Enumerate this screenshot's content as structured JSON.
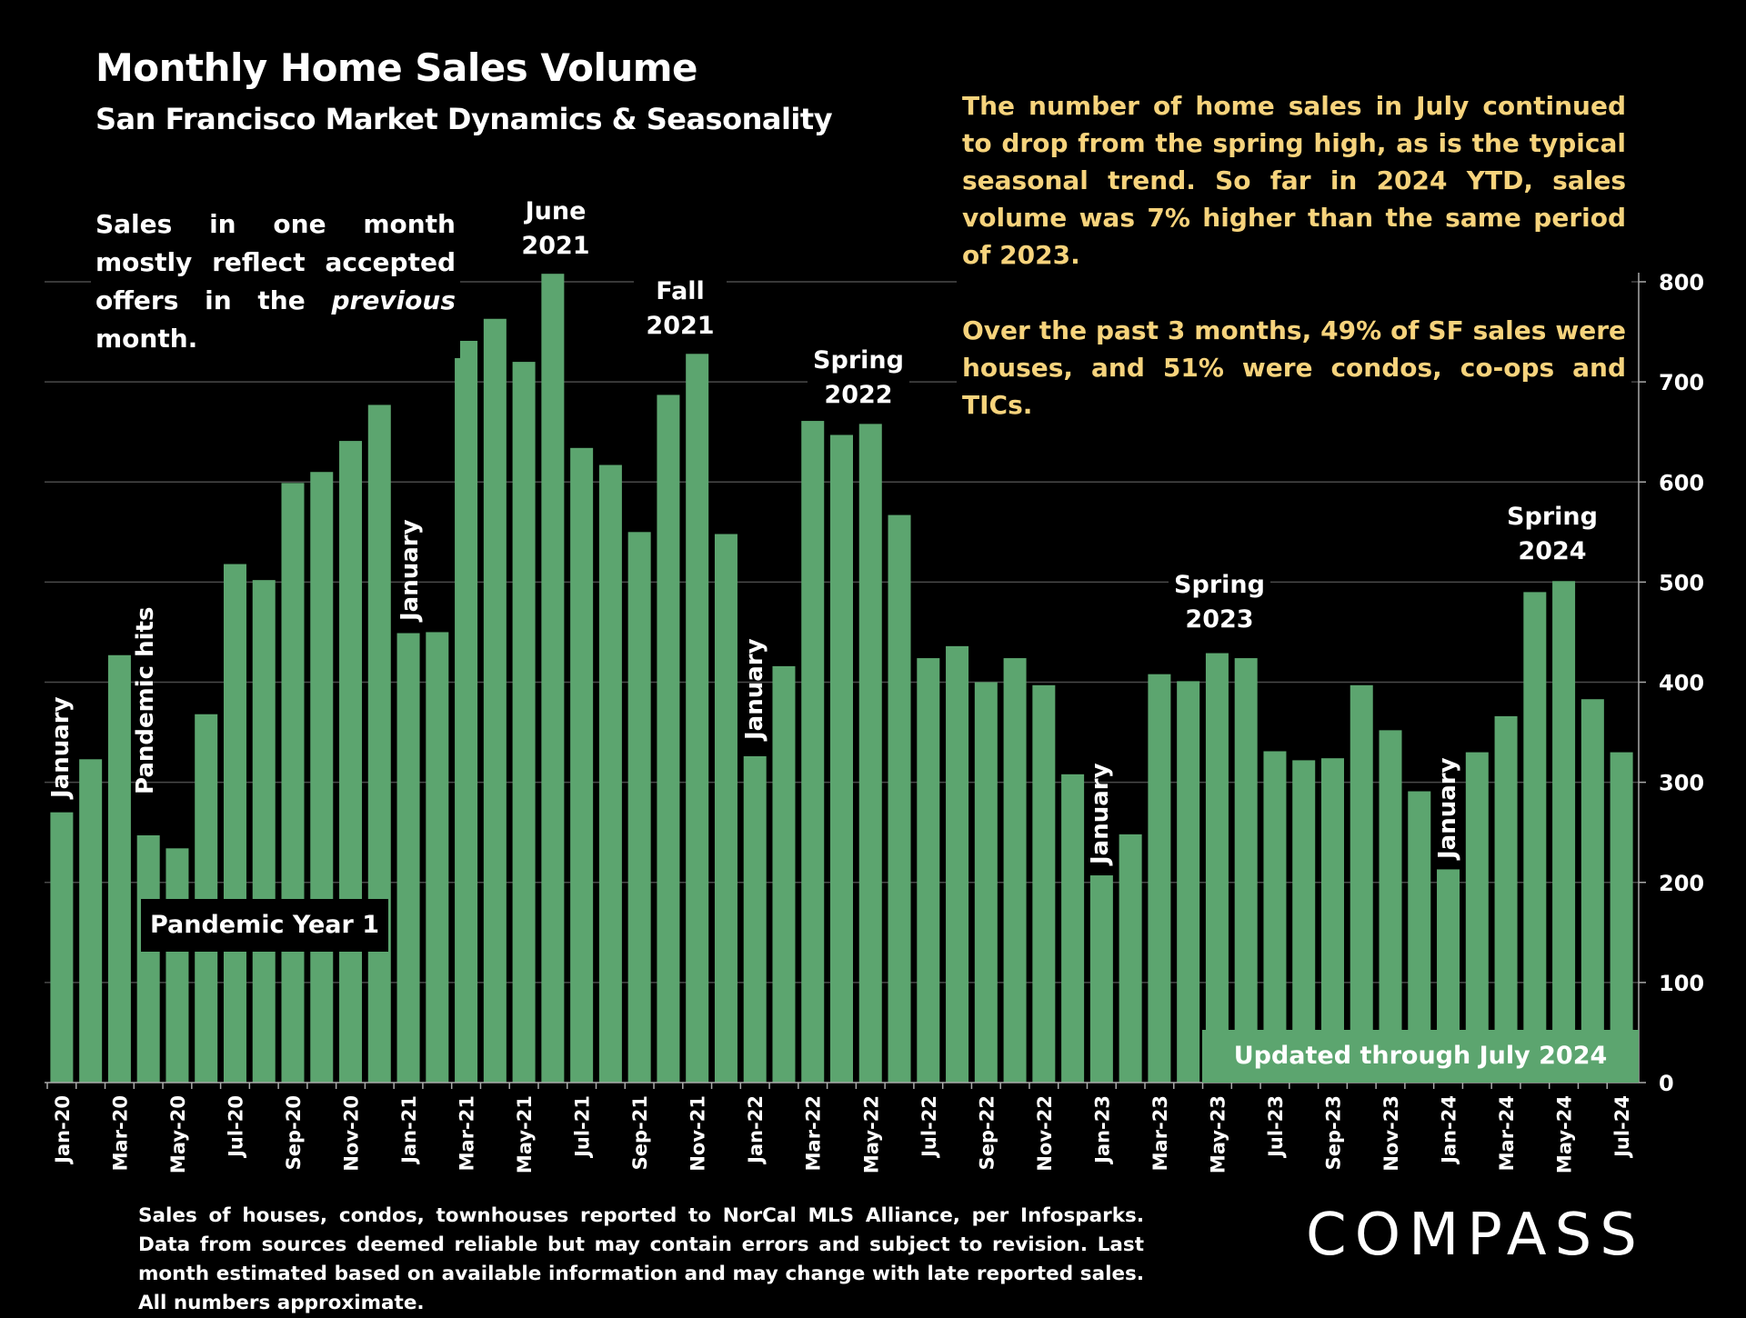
{
  "header": {
    "title": "Monthly Home Sales Volume",
    "subtitle": "San Francisco Market Dynamics & Seasonality"
  },
  "commentary": [
    "The number of home sales in July continued to drop from the spring high, as is the typical seasonal trend. So far in 2024 YTD, sales volume was 7% higher than the same period of 2023.",
    "Over the past 3 months, 49% of SF sales were houses, and 51% were condos, co-ops and TICs."
  ],
  "note": {
    "before": "Sales in one month mostly reflect accepted offers in the ",
    "italic": "previous",
    "after": " month."
  },
  "annotations": {
    "june_2021": "June 2021",
    "fall_2021": "Fall 2021",
    "spring_2022": "Spring 2022",
    "spring_2023": "Spring 2023",
    "spring_2024": "Spring 2024",
    "january": "January",
    "pandemic_hits": "Pandemic hits",
    "pandemic_year_1": "Pandemic Year 1",
    "updated": "Updated through July 2024"
  },
  "footnote": "Sales of houses, condos, townhouses reported to NorCal MLS Alliance, per Infosparks. Data from sources deemed reliable but may contain errors and subject to revision. Last month estimated based on available information and may change with late reported sales. All numbers approximate.",
  "logo": "COMPASS",
  "colors": {
    "bar": "#5CA56F",
    "commentary": "#F6D37C",
    "background": "#000000",
    "grid": "#4a4a4a"
  },
  "chart_data": {
    "type": "bar",
    "title": "Monthly Home Sales Volume",
    "categories": [
      "Jan-20",
      "Feb-20",
      "Mar-20",
      "Apr-20",
      "May-20",
      "Jun-20",
      "Jul-20",
      "Aug-20",
      "Sep-20",
      "Oct-20",
      "Nov-20",
      "Dec-20",
      "Jan-21",
      "Feb-21",
      "Mar-21",
      "Apr-21",
      "May-21",
      "Jun-21",
      "Jul-21",
      "Aug-21",
      "Sep-21",
      "Oct-21",
      "Nov-21",
      "Dec-21",
      "Jan-22",
      "Feb-22",
      "Mar-22",
      "Apr-22",
      "May-22",
      "Jun-22",
      "Jul-22",
      "Aug-22",
      "Sep-22",
      "Oct-22",
      "Nov-22",
      "Dec-22",
      "Jan-23",
      "Feb-23",
      "Mar-23",
      "Apr-23",
      "May-23",
      "Jun-23",
      "Jul-23",
      "Aug-23",
      "Sep-23",
      "Oct-23",
      "Nov-23",
      "Dec-23",
      "Jan-24",
      "Feb-24",
      "Mar-24",
      "Apr-24",
      "May-24",
      "Jun-24",
      "Jul-24"
    ],
    "values": [
      270,
      323,
      427,
      247,
      234,
      368,
      518,
      502,
      599,
      610,
      641,
      677,
      449,
      450,
      741,
      763,
      720,
      808,
      634,
      617,
      550,
      687,
      728,
      548,
      326,
      416,
      661,
      647,
      658,
      567,
      424,
      436,
      400,
      424,
      397,
      308,
      207,
      248,
      408,
      401,
      429,
      424,
      331,
      322,
      324,
      397,
      352,
      291,
      213,
      330,
      366,
      490,
      501,
      383,
      330
    ],
    "xlabel": "",
    "ylabel": "",
    "ylim": [
      0,
      800
    ],
    "yticks": [
      0,
      100,
      200,
      300,
      400,
      500,
      600,
      700,
      800
    ],
    "y_axis_side": "right",
    "grid": true,
    "xtick_every": 2
  }
}
